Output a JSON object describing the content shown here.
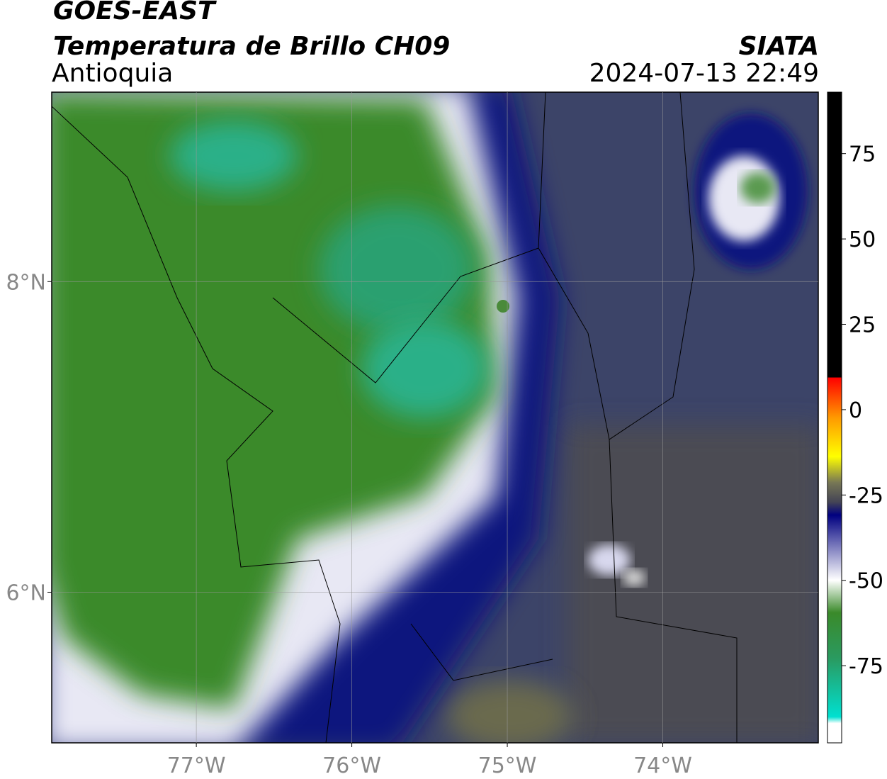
{
  "header": {
    "title": "GOES-EAST",
    "subtitle": "Temperatura de Brillo CH09",
    "region": "Antioquia",
    "source": "SIATA",
    "datetime": "2024-07-13 22:49"
  },
  "map": {
    "xlim": [
      -77.93,
      -73.0
    ],
    "ylim": [
      5.03,
      9.22
    ],
    "xticks": [
      {
        "value": -77,
        "label": "77°W"
      },
      {
        "value": -76,
        "label": "76°W"
      },
      {
        "value": -75,
        "label": "75°W"
      },
      {
        "value": -74,
        "label": "74°W"
      }
    ],
    "yticks": [
      {
        "value": 8,
        "label": "8°N"
      },
      {
        "value": 6,
        "label": "6°N"
      }
    ],
    "grid": true
  },
  "colorbar": {
    "lim": [
      -97.6,
      93
    ],
    "ticks": [
      75,
      50,
      25,
      0,
      -25,
      -50,
      -75
    ]
  }
}
